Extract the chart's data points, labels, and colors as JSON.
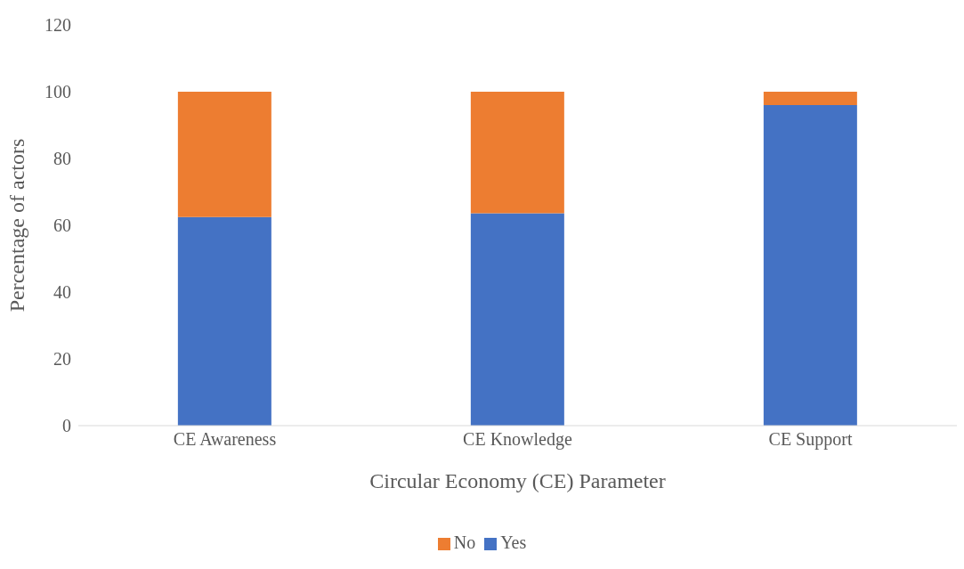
{
  "chart_data": {
    "type": "bar",
    "stacked": true,
    "xlabel": "Circular Economy  (CE) Parameter",
    "ylabel": "Percentage of actors",
    "categories": [
      "CE Awareness",
      "CE Knowledge",
      "CE Support"
    ],
    "series": [
      {
        "name": "Yes",
        "color": "#4472c4",
        "values": [
          62.5,
          63.6,
          96
        ]
      },
      {
        "name": "No",
        "color": "#ed7d31",
        "values": [
          37.5,
          36.4,
          4
        ]
      }
    ],
    "ylim": [
      0,
      120
    ],
    "yticks": [
      0,
      20,
      40,
      60,
      80,
      100,
      120
    ],
    "grid": false,
    "legend": "bottom"
  }
}
